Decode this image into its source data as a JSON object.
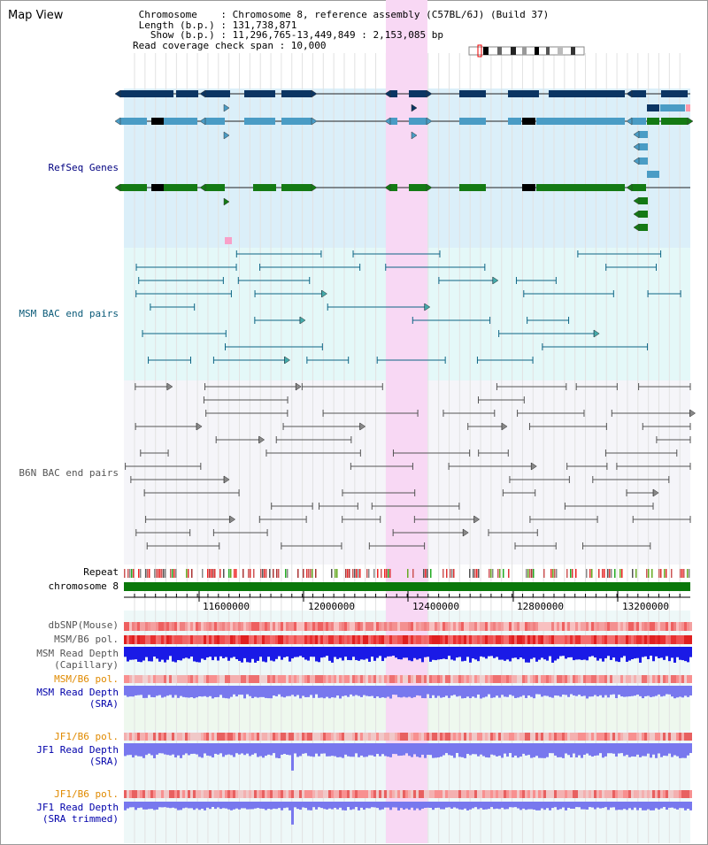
{
  "window": {
    "title": "Map View"
  },
  "info": {
    "lines": [
      " Chromosome    : Chromosome 8, reference assembly (C57BL/6J) (Build 37)",
      " Length (b.p.) : 131,738,871",
      "   Show (b.p.) : 11,296,765-13,449,849 : 2,153,085 bp",
      "Read coverage check span : 10,000"
    ]
  },
  "tracks": {
    "refseq": "RefSeq Genes",
    "msm_bac": "MSM BAC end pairs",
    "b6n_bac": "B6N BAC end pairs",
    "repeat": "Repeat",
    "chromosome": "chromosome 8",
    "dbsnp": "dbSNP(Mouse)",
    "msm_b6_pol": "MSM/B6 pol.",
    "msm_depth_cap_1": "MSM Read Depth",
    "msm_depth_cap_2": "(Capillary)",
    "msm_b6_pol2": "MSM/B6 pol.",
    "msm_depth_sra_1": "MSM Read Depth",
    "msm_depth_sra_2": "(SRA)",
    "jf1_b6_pol": "JF1/B6 pol.",
    "jf1_depth_sra_1": "JF1 Read Depth",
    "jf1_depth_sra_2": "(SRA)",
    "jf1_b6_pol2": "JF1/B6 pol.",
    "jf1_depth_trim_1": "JF1 Read Depth",
    "jf1_depth_trim_2": "(SRA trimmed)"
  },
  "axis": {
    "ticks": [
      "11600000",
      "12000000",
      "12400000",
      "12800000",
      "13200000"
    ]
  },
  "colors": {
    "refseq_bg": "#dbeff9",
    "msm_bg": "#e4f8f8",
    "b6n_bg": "#f5f5f9",
    "highlight": "#f8d8f4",
    "gene_navy": "#0b3563",
    "gene_blue": "#4a9cc5",
    "gene_green": "#147a14",
    "msm_line": "#0d6585",
    "b6n_line": "#555555",
    "chromosome": "#0a780a",
    "depth_blue": "#1a1ae6",
    "depth_violet": "#7878ee"
  }
}
